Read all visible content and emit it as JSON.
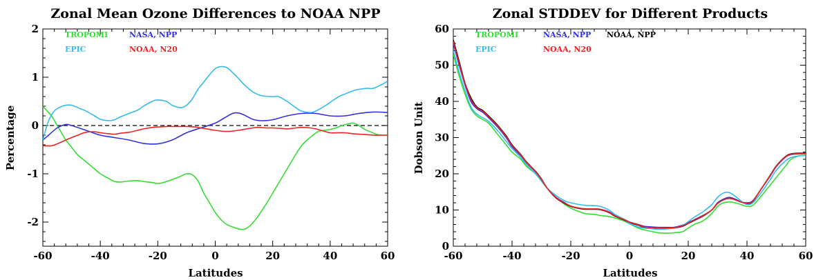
{
  "chart_data": [
    {
      "type": "line",
      "title": "Zonal Mean Ozone Differences to NOAA NPP",
      "xlabel": "Latitudes",
      "ylabel": "Percentage",
      "xlim": [
        -60,
        60
      ],
      "ylim": [
        -2.5,
        2.0
      ],
      "xticks": [
        -60,
        -40,
        -20,
        0,
        20,
        40,
        60
      ],
      "yticks": [
        -2,
        -1,
        0,
        1,
        2
      ],
      "zero_line": "dashed",
      "legend": "top-left",
      "series": [
        {
          "name": "TROPOMI",
          "color": "#33dd33",
          "x": [
            -60,
            -57,
            -55,
            -52,
            -50,
            -48,
            -45,
            -42,
            -40,
            -37,
            -35,
            -33,
            -30,
            -27,
            -25,
            -22,
            -20,
            -18,
            -15,
            -12,
            -10,
            -8,
            -6,
            -4,
            -2,
            0,
            2,
            4,
            6,
            8,
            10,
            12,
            14,
            16,
            18,
            20,
            22,
            24,
            26,
            28,
            30,
            32,
            34,
            36,
            38,
            40,
            42,
            44,
            46,
            48,
            50,
            52,
            54,
            56,
            58,
            60
          ],
          "y": [
            0.4,
            0.2,
            0.0,
            -0.3,
            -0.45,
            -0.6,
            -0.75,
            -0.9,
            -1.0,
            -1.1,
            -1.16,
            -1.17,
            -1.15,
            -1.14,
            -1.16,
            -1.18,
            -1.2,
            -1.18,
            -1.12,
            -1.05,
            -1.0,
            -1.02,
            -1.15,
            -1.4,
            -1.6,
            -1.8,
            -1.95,
            -2.05,
            -2.1,
            -2.14,
            -2.15,
            -2.08,
            -1.95,
            -1.78,
            -1.6,
            -1.4,
            -1.2,
            -1.0,
            -0.8,
            -0.6,
            -0.42,
            -0.3,
            -0.2,
            -0.12,
            -0.1,
            -0.08,
            -0.05,
            0.0,
            0.03,
            0.05,
            0.0,
            -0.08,
            -0.13,
            -0.18,
            -0.2,
            -0.2
          ]
        },
        {
          "name": "NASA, NPP",
          "color": "#3030dd",
          "x": [
            -60,
            -58,
            -55,
            -52,
            -50,
            -45,
            -40,
            -35,
            -30,
            -25,
            -20,
            -15,
            -10,
            -5,
            0,
            3,
            6,
            8,
            10,
            13,
            16,
            20,
            25,
            30,
            35,
            40,
            45,
            50,
            55,
            60
          ],
          "y": [
            -0.3,
            -0.2,
            -0.05,
            0.02,
            0.0,
            -0.1,
            -0.2,
            -0.25,
            -0.3,
            -0.37,
            -0.38,
            -0.3,
            -0.15,
            -0.05,
            0.05,
            0.15,
            0.25,
            0.26,
            0.22,
            0.13,
            0.1,
            0.12,
            0.2,
            0.25,
            0.25,
            0.2,
            0.2,
            0.25,
            0.28,
            0.27
          ]
        },
        {
          "name": "EPIC",
          "color": "#33bbee",
          "x": [
            -60,
            -58,
            -56,
            -54,
            -52,
            -50,
            -47,
            -45,
            -42,
            -40,
            -37,
            -35,
            -33,
            -30,
            -27,
            -25,
            -22,
            -20,
            -17,
            -15,
            -12,
            -10,
            -8,
            -6,
            -4,
            -2,
            0,
            2,
            4,
            6,
            8,
            10,
            13,
            16,
            20,
            22,
            25,
            28,
            30,
            33,
            35,
            38,
            40,
            43,
            45,
            48,
            50,
            53,
            55,
            58,
            60
          ],
          "y": [
            -0.3,
            0.1,
            0.3,
            0.38,
            0.42,
            0.42,
            0.35,
            0.3,
            0.2,
            0.13,
            0.1,
            0.12,
            0.18,
            0.25,
            0.32,
            0.4,
            0.5,
            0.53,
            0.5,
            0.42,
            0.37,
            0.42,
            0.55,
            0.75,
            0.9,
            1.05,
            1.18,
            1.22,
            1.2,
            1.1,
            0.98,
            0.85,
            0.7,
            0.62,
            0.6,
            0.6,
            0.5,
            0.37,
            0.3,
            0.27,
            0.3,
            0.4,
            0.48,
            0.6,
            0.65,
            0.72,
            0.75,
            0.77,
            0.77,
            0.85,
            0.92
          ]
        },
        {
          "name": "NOAA, N20",
          "color": "#ee2222",
          "x": [
            -60,
            -57,
            -55,
            -52,
            -50,
            -47,
            -45,
            -42,
            -40,
            -37,
            -35,
            -33,
            -30,
            -27,
            -25,
            -22,
            -20,
            -17,
            -15,
            -12,
            -10,
            -7,
            -5,
            -2,
            0,
            3,
            5,
            8,
            10,
            13,
            15,
            18,
            20,
            23,
            25,
            28,
            30,
            33,
            35,
            38,
            40,
            43,
            45,
            48,
            50,
            53,
            55,
            58,
            60
          ],
          "y": [
            -0.42,
            -0.42,
            -0.38,
            -0.3,
            -0.25,
            -0.18,
            -0.14,
            -0.13,
            -0.15,
            -0.17,
            -0.18,
            -0.16,
            -0.14,
            -0.1,
            -0.07,
            -0.04,
            -0.03,
            -0.02,
            -0.02,
            -0.02,
            -0.02,
            -0.03,
            -0.05,
            -0.08,
            -0.1,
            -0.12,
            -0.12,
            -0.1,
            -0.08,
            -0.05,
            -0.04,
            -0.05,
            -0.05,
            -0.06,
            -0.07,
            -0.05,
            -0.04,
            -0.05,
            -0.07,
            -0.12,
            -0.15,
            -0.15,
            -0.15,
            -0.17,
            -0.18,
            -0.19,
            -0.2,
            -0.2,
            -0.2
          ]
        }
      ]
    },
    {
      "type": "line",
      "title": "Zonal STDDEV for Different Products",
      "xlabel": "Latitudes",
      "ylabel": "Dobson Unit",
      "xlim": [
        -60,
        60
      ],
      "ylim": [
        0,
        60
      ],
      "xticks": [
        -60,
        -40,
        -20,
        0,
        20,
        40,
        60
      ],
      "yticks": [
        0,
        10,
        20,
        30,
        40,
        50,
        60
      ],
      "legend": "top-left",
      "series": [
        {
          "name": "TROPOMI",
          "color": "#33dd33",
          "x": [
            -60,
            -58,
            -56,
            -54,
            -52,
            -50,
            -48,
            -45,
            -42,
            -40,
            -37,
            -35,
            -32,
            -30,
            -28,
            -25,
            -22,
            -20,
            -17,
            -15,
            -12,
            -10,
            -7,
            -5,
            -2,
            0,
            3,
            5,
            8,
            10,
            13,
            15,
            18,
            20,
            22,
            25,
            28,
            30,
            32,
            34,
            36,
            38,
            40,
            42,
            45,
            48,
            50,
            53,
            55,
            58,
            60
          ],
          "y": [
            53,
            47,
            42,
            38,
            36,
            35,
            34,
            31,
            28,
            26,
            24,
            22,
            20,
            18,
            16,
            13.5,
            11.5,
            10.5,
            9.5,
            9,
            8.8,
            8.5,
            8.2,
            7.8,
            7,
            6.2,
            5,
            4.5,
            4,
            3.7,
            3.6,
            3.7,
            4,
            5,
            6,
            7,
            9,
            11,
            12,
            12.2,
            12,
            11.5,
            11,
            11.3,
            14,
            17,
            19,
            22,
            24,
            25,
            25
          ]
        },
        {
          "name": "NASA, NPP",
          "color": "#3030dd",
          "x": [
            -60,
            -58,
            -56,
            -54,
            -52,
            -50,
            -48,
            -45,
            -42,
            -40,
            -37,
            -35,
            -32,
            -30,
            -28,
            -25,
            -22,
            -20,
            -17,
            -15,
            -12,
            -10,
            -7,
            -5,
            -2,
            0,
            3,
            5,
            8,
            10,
            13,
            15,
            18,
            20,
            22,
            25,
            28,
            30,
            32,
            34,
            36,
            38,
            40,
            42,
            45,
            48,
            50,
            53,
            55,
            58,
            60
          ],
          "y": [
            56,
            50,
            44.5,
            40,
            38,
            37,
            35.5,
            33,
            30,
            27.5,
            25,
            23,
            20.5,
            18.5,
            16,
            13.5,
            12,
            11,
            10.5,
            10.3,
            10.3,
            10.2,
            9.5,
            8.5,
            7.5,
            6.7,
            6,
            5.5,
            5.3,
            5.2,
            5.2,
            5.2,
            5.8,
            6.5,
            7.3,
            8.5,
            10,
            12,
            13,
            13.5,
            13,
            12.3,
            12,
            12.6,
            16,
            19.5,
            22,
            24.5,
            25.3,
            25.5,
            25.5
          ]
        },
        {
          "name": "NOAA, NPP",
          "color": "#000000",
          "x": [
            -60,
            -58,
            -56,
            -54,
            -52,
            -50,
            -48,
            -45,
            -42,
            -40,
            -37,
            -35,
            -32,
            -30,
            -28,
            -25,
            -22,
            -20,
            -17,
            -15,
            -12,
            -10,
            -7,
            -5,
            -2,
            0,
            3,
            5,
            8,
            10,
            13,
            15,
            18,
            20,
            22,
            25,
            28,
            30,
            32,
            34,
            36,
            38,
            40,
            42,
            45,
            48,
            50,
            53,
            55,
            58,
            60
          ],
          "y": [
            57,
            51,
            45,
            41,
            38.5,
            37.5,
            36,
            33.5,
            30.5,
            28,
            25.3,
            23.2,
            20.7,
            18.6,
            16,
            13.3,
            11.8,
            11,
            10.4,
            10.2,
            10.2,
            10.1,
            9.3,
            8.3,
            7.3,
            6.5,
            5.8,
            5.2,
            5,
            4.9,
            4.9,
            5,
            5.5,
            6.3,
            7.1,
            8.3,
            10,
            11.8,
            12.8,
            13.2,
            12.8,
            12.2,
            11.8,
            12.4,
            16,
            19.7,
            22.2,
            24.7,
            25.5,
            25.7,
            25.7
          ]
        },
        {
          "name": "EPIC",
          "color": "#33bbee",
          "x": [
            -60,
            -58,
            -56,
            -54,
            -52,
            -50,
            -48,
            -45,
            -42,
            -40,
            -37,
            -35,
            -32,
            -30,
            -28,
            -25,
            -22,
            -20,
            -17,
            -15,
            -12,
            -10,
            -7,
            -5,
            -2,
            0,
            3,
            5,
            8,
            10,
            13,
            15,
            18,
            20,
            22,
            25,
            28,
            30,
            32,
            34,
            36,
            38,
            40,
            42,
            45,
            48,
            50,
            53,
            55,
            58,
            60
          ],
          "y": [
            54,
            48,
            43,
            38.5,
            36.5,
            35.5,
            34.5,
            32,
            29,
            27,
            24.5,
            22.5,
            20,
            18,
            16,
            14,
            12.5,
            12,
            11.5,
            11.3,
            11.2,
            11,
            10,
            8.8,
            7.5,
            6.3,
            5.3,
            5,
            4.8,
            4.7,
            4.8,
            5,
            5.7,
            6.8,
            8,
            9.5,
            11.5,
            13.5,
            14.7,
            14.8,
            13.8,
            12.5,
            11.5,
            12,
            15,
            18.5,
            21,
            23.5,
            24.5,
            25,
            25
          ]
        },
        {
          "name": "NOAA, N20",
          "color": "#ee2222",
          "x": [
            -60,
            -58,
            -56,
            -54,
            -52,
            -50,
            -48,
            -45,
            -42,
            -40,
            -37,
            -35,
            -32,
            -30,
            -28,
            -25,
            -22,
            -20,
            -17,
            -15,
            -12,
            -10,
            -7,
            -5,
            -2,
            0,
            3,
            5,
            8,
            10,
            13,
            15,
            18,
            20,
            22,
            25,
            28,
            30,
            32,
            34,
            36,
            38,
            40,
            42,
            45,
            48,
            50,
            53,
            55,
            58,
            60
          ],
          "y": [
            56.5,
            50.5,
            44.8,
            40.5,
            38.3,
            37.3,
            35.8,
            33.3,
            30.3,
            27.8,
            25.2,
            23.1,
            20.6,
            18.5,
            16,
            13.4,
            11.9,
            11.1,
            10.5,
            10.3,
            10.3,
            10.2,
            9.4,
            8.4,
            7.4,
            6.6,
            5.9,
            5.3,
            5.1,
            5,
            5,
            5.1,
            5.6,
            6.4,
            7.2,
            8.4,
            10,
            11.8,
            12.8,
            13.2,
            12.8,
            12.2,
            11.9,
            12.5,
            16,
            19.6,
            22.1,
            24.6,
            25.4,
            25.6,
            25.6
          ]
        }
      ]
    }
  ]
}
